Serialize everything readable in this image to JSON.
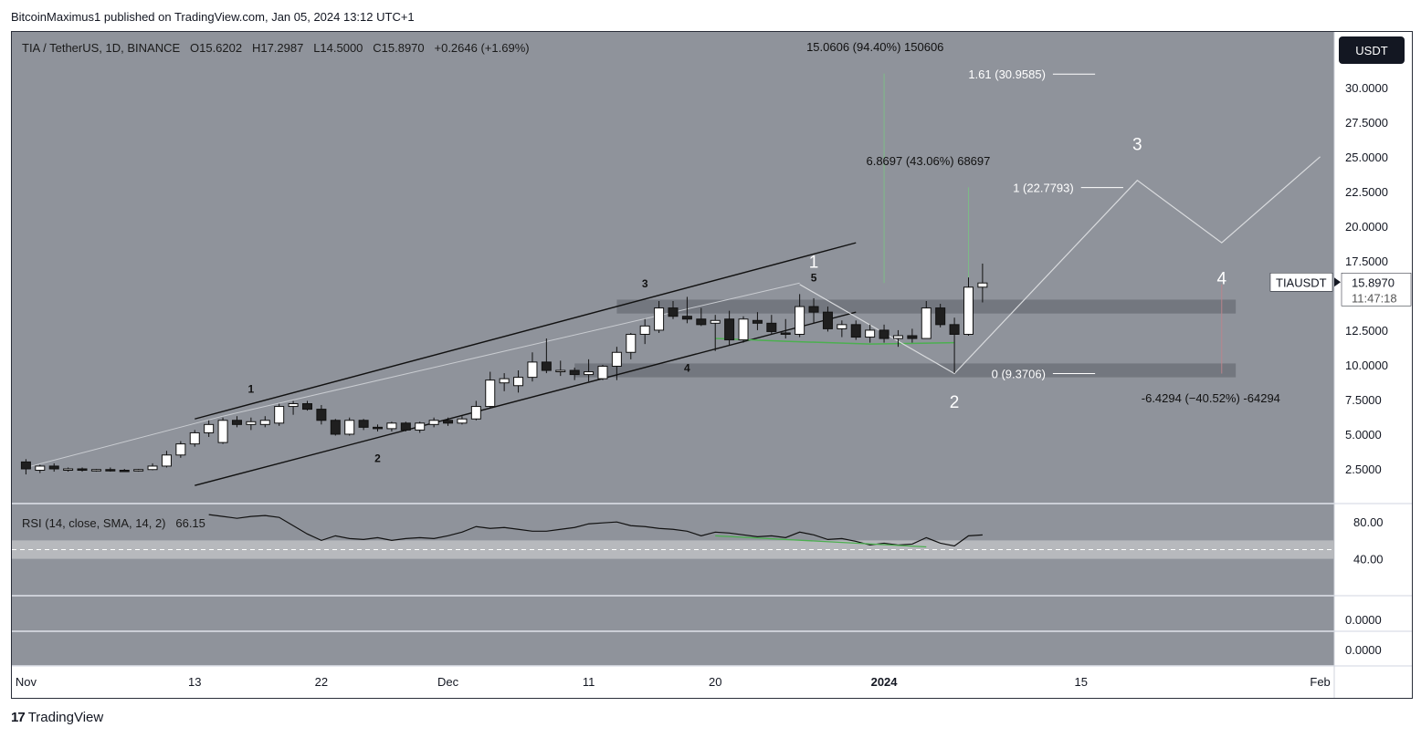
{
  "header": {
    "published_by": "BitcoinMaximus1 published on TradingView.com, Jan 05, 2024 13:12 UTC+1"
  },
  "footer": {
    "brand_mark": "17",
    "brand": "TradingView"
  },
  "toolbar": {
    "currency": "USDT"
  },
  "legend": {
    "symbol": "TIA / TetherUS, 1D, BINANCE",
    "open": "O15.6202",
    "high": "H17.2987",
    "low": "L14.5000",
    "close": "C15.8970",
    "change": "+0.2646 (+1.69%)"
  },
  "rsi_legend": {
    "label": "RSI (14, close, SMA, 14, 2)",
    "value": "66.15"
  },
  "price_tag": {
    "symbol": "TIAUSDT",
    "price": "15.8970",
    "countdown": "11:47:18"
  },
  "colors": {
    "pane_bg": "#8f939b",
    "axis_bg": "#ffffff",
    "up": "#ffffff",
    "down": "#1f1f1f",
    "rsi_band": "#b7b9bd",
    "divergence": "#4caf50",
    "price_tag_bg": "#ffffff",
    "dark": "#131722"
  },
  "chart_data": {
    "type": "candlestick",
    "title": "TIA / TetherUS, 1D, BINANCE",
    "y_ticks": [
      "30.0000",
      "27.5000",
      "25.0000",
      "22.5000",
      "20.0000",
      "17.5000",
      "15.0000",
      "12.5000",
      "10.0000",
      "7.5000",
      "5.0000",
      "2.5000"
    ],
    "ylim": [
      0,
      34
    ],
    "x_ticks": [
      "Nov",
      "13",
      "22",
      "Dec",
      "11",
      "20",
      "2024",
      "15",
      "Feb"
    ],
    "x_tick_days": [
      0,
      12,
      21,
      30,
      40,
      49,
      61,
      75,
      92
    ],
    "xlim": [
      -1,
      93
    ],
    "candles": [
      {
        "d": 0,
        "o": 3.0,
        "h": 3.2,
        "l": 2.1,
        "c": 2.5
      },
      {
        "d": 1,
        "o": 2.4,
        "h": 2.8,
        "l": 2.2,
        "c": 2.7
      },
      {
        "d": 2,
        "o": 2.7,
        "h": 2.9,
        "l": 2.3,
        "c": 2.5
      },
      {
        "d": 3,
        "o": 2.4,
        "h": 2.6,
        "l": 2.3,
        "c": 2.5
      },
      {
        "d": 4,
        "o": 2.5,
        "h": 2.6,
        "l": 2.3,
        "c": 2.4
      },
      {
        "d": 5,
        "o": 2.4,
        "h": 2.5,
        "l": 2.3,
        "c": 2.45
      },
      {
        "d": 6,
        "o": 2.45,
        "h": 2.6,
        "l": 2.3,
        "c": 2.4
      },
      {
        "d": 7,
        "o": 2.4,
        "h": 2.5,
        "l": 2.3,
        "c": 2.35
      },
      {
        "d": 8,
        "o": 2.35,
        "h": 2.5,
        "l": 2.3,
        "c": 2.45
      },
      {
        "d": 9,
        "o": 2.45,
        "h": 2.9,
        "l": 2.4,
        "c": 2.7
      },
      {
        "d": 10,
        "o": 2.7,
        "h": 3.8,
        "l": 2.6,
        "c": 3.5
      },
      {
        "d": 11,
        "o": 3.5,
        "h": 4.5,
        "l": 3.3,
        "c": 4.3
      },
      {
        "d": 12,
        "o": 4.3,
        "h": 5.3,
        "l": 4.1,
        "c": 5.1
      },
      {
        "d": 13,
        "o": 5.1,
        "h": 6.0,
        "l": 4.8,
        "c": 5.7
      },
      {
        "d": 14,
        "o": 4.4,
        "h": 6.2,
        "l": 4.3,
        "c": 6.0
      },
      {
        "d": 15,
        "o": 6.0,
        "h": 6.3,
        "l": 5.5,
        "c": 5.7
      },
      {
        "d": 16,
        "o": 5.7,
        "h": 6.2,
        "l": 5.3,
        "c": 5.9
      },
      {
        "d": 17,
        "o": 5.7,
        "h": 6.3,
        "l": 5.5,
        "c": 6.0
      },
      {
        "d": 18,
        "o": 5.8,
        "h": 7.2,
        "l": 5.6,
        "c": 7.0
      },
      {
        "d": 19,
        "o": 7.0,
        "h": 7.4,
        "l": 6.4,
        "c": 7.2
      },
      {
        "d": 20,
        "o": 7.2,
        "h": 7.4,
        "l": 6.7,
        "c": 6.8
      },
      {
        "d": 21,
        "o": 6.8,
        "h": 7.1,
        "l": 5.7,
        "c": 6.0
      },
      {
        "d": 22,
        "o": 6.0,
        "h": 6.1,
        "l": 4.9,
        "c": 5.0
      },
      {
        "d": 23,
        "o": 5.0,
        "h": 6.2,
        "l": 4.9,
        "c": 6.0
      },
      {
        "d": 24,
        "o": 6.0,
        "h": 6.1,
        "l": 5.3,
        "c": 5.5
      },
      {
        "d": 25,
        "o": 5.5,
        "h": 5.7,
        "l": 5.2,
        "c": 5.4
      },
      {
        "d": 26,
        "o": 5.4,
        "h": 5.9,
        "l": 5.2,
        "c": 5.8
      },
      {
        "d": 27,
        "o": 5.8,
        "h": 5.9,
        "l": 5.2,
        "c": 5.3
      },
      {
        "d": 28,
        "o": 5.3,
        "h": 5.9,
        "l": 5.1,
        "c": 5.8
      },
      {
        "d": 29,
        "o": 5.7,
        "h": 6.2,
        "l": 5.5,
        "c": 6.0
      },
      {
        "d": 30,
        "o": 6.0,
        "h": 6.2,
        "l": 5.6,
        "c": 5.8
      },
      {
        "d": 31,
        "o": 5.8,
        "h": 6.3,
        "l": 5.7,
        "c": 6.1
      },
      {
        "d": 32,
        "o": 6.1,
        "h": 7.4,
        "l": 6.0,
        "c": 7.0
      },
      {
        "d": 33,
        "o": 7.0,
        "h": 9.5,
        "l": 6.9,
        "c": 8.9
      },
      {
        "d": 34,
        "o": 8.7,
        "h": 9.4,
        "l": 8.1,
        "c": 9.0
      },
      {
        "d": 35,
        "o": 8.5,
        "h": 9.6,
        "l": 8.0,
        "c": 9.1
      },
      {
        "d": 36,
        "o": 9.1,
        "h": 10.9,
        "l": 8.8,
        "c": 10.2
      },
      {
        "d": 37,
        "o": 10.2,
        "h": 11.9,
        "l": 9.4,
        "c": 9.6
      },
      {
        "d": 38,
        "o": 9.6,
        "h": 10.3,
        "l": 9.2,
        "c": 9.6
      },
      {
        "d": 39,
        "o": 9.6,
        "h": 9.8,
        "l": 8.9,
        "c": 9.3
      },
      {
        "d": 40,
        "o": 9.3,
        "h": 10.4,
        "l": 8.8,
        "c": 9.5
      },
      {
        "d": 41,
        "o": 9.0,
        "h": 10.0,
        "l": 8.9,
        "c": 9.9
      },
      {
        "d": 42,
        "o": 9.9,
        "h": 11.3,
        "l": 8.9,
        "c": 10.9
      },
      {
        "d": 43,
        "o": 10.9,
        "h": 12.3,
        "l": 10.4,
        "c": 12.2
      },
      {
        "d": 44,
        "o": 12.2,
        "h": 13.3,
        "l": 11.5,
        "c": 12.8
      },
      {
        "d": 45,
        "o": 12.5,
        "h": 14.6,
        "l": 12.3,
        "c": 14.1
      },
      {
        "d": 46,
        "o": 14.1,
        "h": 14.6,
        "l": 13.3,
        "c": 13.5
      },
      {
        "d": 47,
        "o": 13.5,
        "h": 14.9,
        "l": 13.0,
        "c": 13.3
      },
      {
        "d": 48,
        "o": 13.3,
        "h": 14.1,
        "l": 12.8,
        "c": 12.9
      },
      {
        "d": 49,
        "o": 13.0,
        "h": 13.6,
        "l": 11.0,
        "c": 13.2
      },
      {
        "d": 50,
        "o": 13.3,
        "h": 13.9,
        "l": 11.4,
        "c": 11.8
      },
      {
        "d": 51,
        "o": 11.8,
        "h": 13.5,
        "l": 11.6,
        "c": 13.3
      },
      {
        "d": 52,
        "o": 13.2,
        "h": 13.8,
        "l": 12.5,
        "c": 13.0
      },
      {
        "d": 53,
        "o": 13.0,
        "h": 13.6,
        "l": 12.2,
        "c": 12.4
      },
      {
        "d": 54,
        "o": 12.3,
        "h": 13.3,
        "l": 11.9,
        "c": 12.2
      },
      {
        "d": 55,
        "o": 12.2,
        "h": 15.1,
        "l": 12.0,
        "c": 14.2
      },
      {
        "d": 56,
        "o": 14.2,
        "h": 14.8,
        "l": 13.0,
        "c": 13.8
      },
      {
        "d": 57,
        "o": 13.8,
        "h": 14.2,
        "l": 12.4,
        "c": 12.6
      },
      {
        "d": 58,
        "o": 12.6,
        "h": 13.2,
        "l": 12.0,
        "c": 12.9
      },
      {
        "d": 59,
        "o": 12.9,
        "h": 13.2,
        "l": 11.8,
        "c": 12.0
      },
      {
        "d": 60,
        "o": 12.0,
        "h": 12.9,
        "l": 11.6,
        "c": 12.5
      },
      {
        "d": 61,
        "o": 12.5,
        "h": 12.9,
        "l": 11.6,
        "c": 11.9
      },
      {
        "d": 62,
        "o": 11.9,
        "h": 12.5,
        "l": 11.3,
        "c": 12.1
      },
      {
        "d": 63,
        "o": 12.1,
        "h": 12.6,
        "l": 11.6,
        "c": 11.9
      },
      {
        "d": 64,
        "o": 11.9,
        "h": 14.6,
        "l": 11.9,
        "c": 14.1
      },
      {
        "d": 65,
        "o": 14.1,
        "h": 14.4,
        "l": 12.7,
        "c": 12.9
      },
      {
        "d": 66,
        "o": 12.9,
        "h": 13.4,
        "l": 9.4,
        "c": 12.2
      },
      {
        "d": 67,
        "o": 12.2,
        "h": 16.3,
        "l": 12.1,
        "c": 15.6
      },
      {
        "d": 68,
        "o": 15.6,
        "h": 17.3,
        "l": 14.5,
        "c": 15.9
      }
    ],
    "rsi": {
      "ylim": [
        0,
        100
      ],
      "visible_ticks": [
        "80.00",
        "40.00"
      ],
      "lower_ticks": [
        "0.0000",
        "0.0000"
      ],
      "values": [
        {
          "d": 13,
          "v": 88
        },
        {
          "d": 14,
          "v": 86
        },
        {
          "d": 15,
          "v": 84
        },
        {
          "d": 16,
          "v": 86
        },
        {
          "d": 17,
          "v": 87
        },
        {
          "d": 18,
          "v": 85
        },
        {
          "d": 19,
          "v": 76
        },
        {
          "d": 20,
          "v": 67
        },
        {
          "d": 21,
          "v": 60
        },
        {
          "d": 22,
          "v": 65
        },
        {
          "d": 23,
          "v": 62
        },
        {
          "d": 24,
          "v": 61
        },
        {
          "d": 25,
          "v": 63
        },
        {
          "d": 26,
          "v": 60
        },
        {
          "d": 27,
          "v": 62
        },
        {
          "d": 28,
          "v": 63
        },
        {
          "d": 29,
          "v": 62
        },
        {
          "d": 30,
          "v": 65
        },
        {
          "d": 31,
          "v": 69
        },
        {
          "d": 32,
          "v": 75
        },
        {
          "d": 33,
          "v": 73
        },
        {
          "d": 34,
          "v": 74
        },
        {
          "d": 35,
          "v": 72
        },
        {
          "d": 36,
          "v": 70
        },
        {
          "d": 37,
          "v": 70
        },
        {
          "d": 38,
          "v": 72
        },
        {
          "d": 39,
          "v": 74
        },
        {
          "d": 40,
          "v": 78
        },
        {
          "d": 41,
          "v": 79
        },
        {
          "d": 42,
          "v": 80
        },
        {
          "d": 43,
          "v": 76
        },
        {
          "d": 44,
          "v": 75
        },
        {
          "d": 45,
          "v": 73
        },
        {
          "d": 46,
          "v": 72
        },
        {
          "d": 47,
          "v": 70
        },
        {
          "d": 48,
          "v": 65
        },
        {
          "d": 49,
          "v": 69
        },
        {
          "d": 50,
          "v": 68
        },
        {
          "d": 51,
          "v": 66
        },
        {
          "d": 52,
          "v": 64
        },
        {
          "d": 53,
          "v": 65
        },
        {
          "d": 54,
          "v": 63
        },
        {
          "d": 55,
          "v": 69
        },
        {
          "d": 56,
          "v": 66
        },
        {
          "d": 57,
          "v": 61
        },
        {
          "d": 58,
          "v": 62
        },
        {
          "d": 59,
          "v": 59
        },
        {
          "d": 60,
          "v": 55
        },
        {
          "d": 61,
          "v": 57
        },
        {
          "d": 62,
          "v": 55
        },
        {
          "d": 63,
          "v": 56
        },
        {
          "d": 64,
          "v": 63
        },
        {
          "d": 65,
          "v": 57
        },
        {
          "d": 66,
          "v": 54
        },
        {
          "d": 67,
          "v": 65
        },
        {
          "d": 68,
          "v": 66
        }
      ],
      "divergence": [
        {
          "d": 49,
          "v": 65
        },
        {
          "d": 64,
          "v": 53
        }
      ],
      "band": [
        40,
        60
      ],
      "midline": 50
    },
    "channel": {
      "upper": [
        {
          "d": 12,
          "p": 6.1
        },
        {
          "d": 59,
          "p": 18.8
        }
      ],
      "lower": [
        {
          "d": 12,
          "p": 1.3
        },
        {
          "d": 59,
          "p": 13.8
        }
      ]
    },
    "zones": [
      {
        "d0": 42,
        "d1": 86,
        "p0": 13.7,
        "p1": 14.7
      },
      {
        "d0": 39,
        "d1": 86,
        "p0": 9.1,
        "p1": 10.1
      }
    ],
    "green_support": [
      {
        "d": 49,
        "p": 11.9
      },
      {
        "d": 54,
        "p": 11.7
      },
      {
        "d": 60,
        "p": 11.5
      },
      {
        "d": 66,
        "p": 11.6
      }
    ],
    "wave_projection": [
      {
        "d": 55,
        "p": 15.8
      },
      {
        "d": 66,
        "p": 9.37
      },
      {
        "d": 79,
        "p": 23.3
      },
      {
        "d": 85,
        "p": 18.8
      },
      {
        "d": 92,
        "p": 25.0
      }
    ],
    "light_path": [
      {
        "d": 0,
        "p": 2.6
      },
      {
        "d": 14,
        "p": 6.3
      },
      {
        "d": 55,
        "p": 15.9
      }
    ],
    "fib_levels": [
      {
        "label": "1.61 (30.9585)",
        "p": 30.96,
        "d0": 73,
        "d1": 76
      },
      {
        "label": "1 (22.7793)",
        "p": 22.78,
        "d0": 75,
        "d1": 78
      },
      {
        "label": "0 (9.3706)",
        "p": 9.37,
        "d0": 73,
        "d1": 76
      }
    ],
    "measures": [
      {
        "label": "15.0606 (94.40%) 150606",
        "d": 61,
        "p_from": 15.9,
        "p_to": 31.0
      },
      {
        "label": "6.8697 (43.06%) 68697",
        "d": 67,
        "p_from": 15.9,
        "p_to": 22.8
      },
      {
        "label": "-6.4294 (−40.52%) -64294",
        "d": 85,
        "p_from": 15.8,
        "p_to": 9.37
      }
    ],
    "wave_labels_small": [
      {
        "text": "1",
        "d": 16,
        "p": 8.0
      },
      {
        "text": "2",
        "d": 25,
        "p": 3.0
      },
      {
        "text": "3",
        "d": 44,
        "p": 15.6
      },
      {
        "text": "4",
        "d": 47,
        "p": 9.5
      },
      {
        "text": "5",
        "d": 56,
        "p": 16.0
      }
    ],
    "wave_labels_large": [
      {
        "text": "1",
        "d": 56,
        "p": 17.0
      },
      {
        "text": "2",
        "d": 66,
        "p": 6.9
      },
      {
        "text": "3",
        "d": 79,
        "p": 25.5
      },
      {
        "text": "4",
        "d": 85,
        "p": 15.8
      }
    ]
  }
}
